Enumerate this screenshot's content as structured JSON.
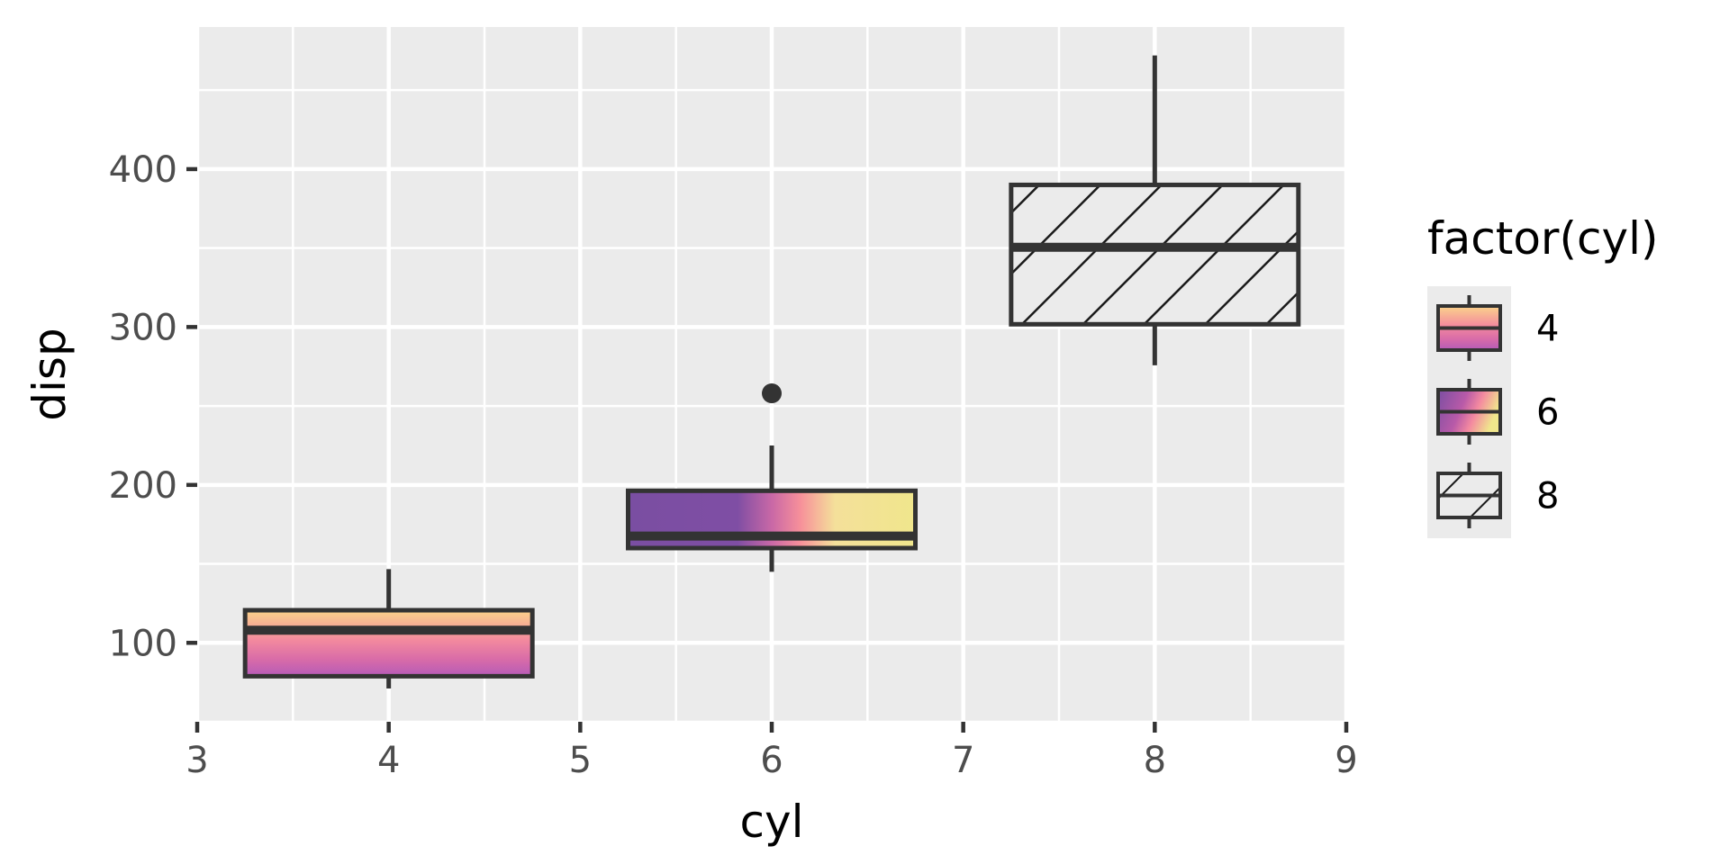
{
  "chart_data": {
    "type": "boxplot",
    "title": "",
    "xlabel": "cyl",
    "ylabel": "disp",
    "xlim": [
      3,
      9
    ],
    "ylim": [
      50,
      490
    ],
    "x_ticks": [
      3,
      4,
      5,
      6,
      7,
      8,
      9
    ],
    "y_ticks": [
      100,
      200,
      300,
      400
    ],
    "grid": true,
    "legend": {
      "title": "factor(cyl)",
      "placement": "right",
      "entries": [
        "4",
        "6",
        "8"
      ]
    },
    "boxes": [
      {
        "group": "4",
        "x": 4,
        "whisker_low": 71.1,
        "q1": 78.85,
        "median": 108.0,
        "q3": 120.65,
        "whisker_high": 146.7,
        "outliers": [],
        "fill": "gradient-vertical"
      },
      {
        "group": "6",
        "x": 6,
        "whisker_low": 145.0,
        "q1": 160.0,
        "median": 167.6,
        "q3": 196.3,
        "whisker_high": 225.0,
        "outliers": [
          258.0
        ],
        "fill": "gradient-horizontal"
      },
      {
        "group": "8",
        "x": 8,
        "whisker_low": 275.8,
        "q1": 301.75,
        "median": 350.5,
        "q3": 390.0,
        "whisker_high": 472.0,
        "outliers": [],
        "fill": "hatch"
      }
    ],
    "colors": {
      "panel": "#ebebeb",
      "grid": "#ffffff",
      "box_line": "#333333",
      "gradient_yellow": "#f0e68c",
      "gradient_pink": "#f0819e",
      "gradient_purple": "#7b4ea3",
      "gradient_orange": "#f9c27d"
    }
  }
}
